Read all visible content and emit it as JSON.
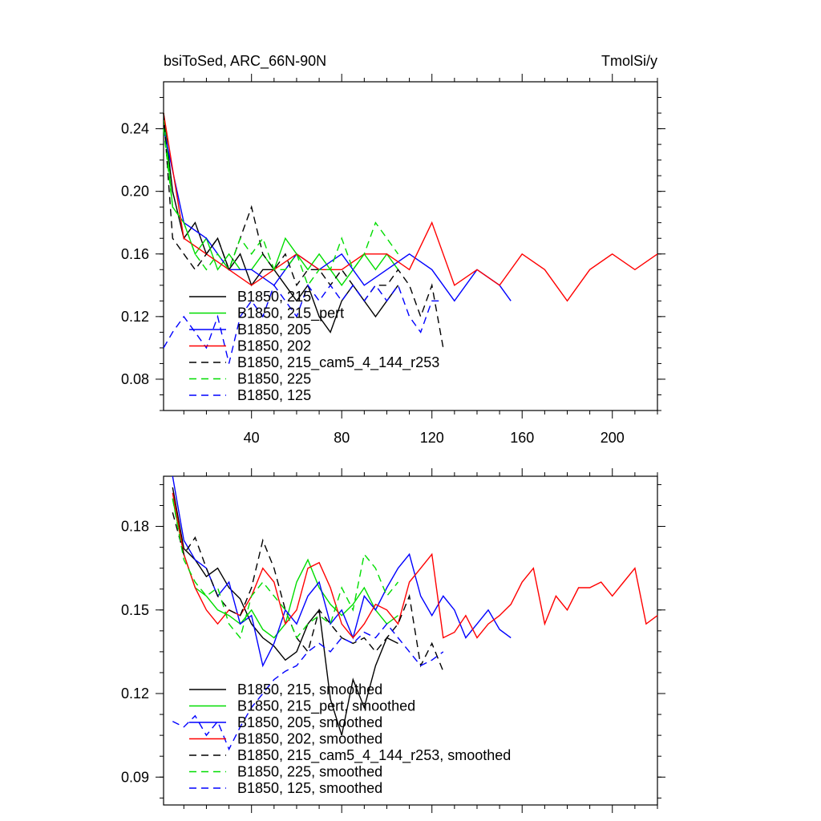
{
  "chart_data": [
    {
      "type": "line",
      "title_left": "bsiToSed, ARC_66N-90N",
      "title_right": "TmolSi/y",
      "xlim": [
        1,
        220
      ],
      "ylim": [
        0.06,
        0.27
      ],
      "xticks": [
        40,
        80,
        120,
        160,
        200
      ],
      "xtick_labels": [
        "40",
        "80",
        "120",
        "160",
        "200"
      ],
      "yticks": [
        0.08,
        0.12,
        0.16,
        0.2,
        0.24
      ],
      "ytick_labels": [
        "0.08",
        "0.12",
        "0.16",
        "0.20",
        "0.24"
      ],
      "legend": [
        {
          "label": "B1850, 215",
          "color": "#000000",
          "dash": "solid"
        },
        {
          "label": "B1850, 215_pert",
          "color": "#00dd00",
          "dash": "solid"
        },
        {
          "label": "B1850, 205",
          "color": "#0000ff",
          "dash": "solid"
        },
        {
          "label": "B1850, 202",
          "color": "#ff0000",
          "dash": "solid"
        },
        {
          "label": "B1850, 215_cam5_4_144_r253",
          "color": "#000000",
          "dash": "dashed"
        },
        {
          "label": "B1850, 225",
          "color": "#00dd00",
          "dash": "dashed"
        },
        {
          "label": "B1850, 125",
          "color": "#0000ff",
          "dash": "dashed"
        }
      ],
      "series": [
        {
          "name": "B1850, 215",
          "color": "#000000",
          "dash": "solid",
          "x": [
            1,
            5,
            10,
            15,
            20,
            25,
            30,
            35,
            40,
            45,
            50,
            55,
            60,
            65,
            70,
            75,
            80,
            85,
            90,
            95,
            100,
            105
          ],
          "values": [
            0.25,
            0.2,
            0.17,
            0.18,
            0.16,
            0.17,
            0.15,
            0.16,
            0.14,
            0.15,
            0.15,
            0.14,
            0.13,
            0.14,
            0.12,
            0.11,
            0.13,
            0.14,
            0.13,
            0.12,
            0.13,
            0.14
          ]
        },
        {
          "name": "B1850, 215_pert",
          "color": "#00dd00",
          "dash": "solid",
          "x": [
            1,
            5,
            10,
            15,
            20,
            25,
            30,
            35,
            40,
            45,
            50,
            55,
            60,
            65,
            70,
            75,
            80,
            85,
            90,
            95,
            100,
            105
          ],
          "values": [
            0.25,
            0.19,
            0.18,
            0.16,
            0.17,
            0.15,
            0.16,
            0.15,
            0.15,
            0.16,
            0.15,
            0.17,
            0.16,
            0.15,
            0.16,
            0.15,
            0.14,
            0.15,
            0.16,
            0.15,
            0.16,
            0.15
          ]
        },
        {
          "name": "B1850, 205",
          "color": "#0000ff",
          "dash": "solid",
          "x": [
            1,
            10,
            20,
            30,
            40,
            50,
            60,
            70,
            80,
            90,
            100,
            110,
            120,
            130,
            140,
            150,
            155
          ],
          "values": [
            0.24,
            0.18,
            0.17,
            0.15,
            0.15,
            0.14,
            0.16,
            0.15,
            0.16,
            0.14,
            0.15,
            0.16,
            0.15,
            0.13,
            0.15,
            0.14,
            0.13
          ]
        },
        {
          "name": "B1850, 202",
          "color": "#ff0000",
          "dash": "solid",
          "x": [
            1,
            10,
            20,
            30,
            40,
            50,
            60,
            70,
            80,
            90,
            100,
            110,
            120,
            130,
            140,
            150,
            160,
            170,
            180,
            190,
            200,
            210,
            220
          ],
          "values": [
            0.25,
            0.17,
            0.16,
            0.15,
            0.14,
            0.15,
            0.16,
            0.15,
            0.15,
            0.16,
            0.16,
            0.15,
            0.18,
            0.14,
            0.15,
            0.14,
            0.16,
            0.15,
            0.13,
            0.15,
            0.16,
            0.15,
            0.16
          ]
        },
        {
          "name": "B1850, 215_cam5_4_144_r253",
          "color": "#000000",
          "dash": "dashed",
          "x": [
            1,
            5,
            10,
            15,
            20,
            25,
            30,
            35,
            40,
            45,
            50,
            55,
            60,
            65,
            70,
            75,
            80,
            85,
            90,
            95,
            100,
            105,
            110,
            115,
            120,
            125
          ],
          "values": [
            0.25,
            0.17,
            0.16,
            0.15,
            0.16,
            0.17,
            0.15,
            0.17,
            0.19,
            0.16,
            0.15,
            0.16,
            0.14,
            0.15,
            0.15,
            0.14,
            0.15,
            0.14,
            0.13,
            0.14,
            0.14,
            0.15,
            0.14,
            0.12,
            0.14,
            0.1
          ]
        },
        {
          "name": "B1850, 225",
          "color": "#00dd00",
          "dash": "dashed",
          "x": [
            1,
            5,
            10,
            15,
            20,
            25,
            30,
            35,
            40,
            45,
            50,
            55,
            60,
            65,
            70,
            75,
            80,
            85,
            90,
            95,
            100,
            105
          ],
          "values": [
            0.24,
            0.19,
            0.18,
            0.16,
            0.15,
            0.16,
            0.15,
            0.17,
            0.16,
            0.17,
            0.15,
            0.15,
            0.16,
            0.14,
            0.15,
            0.15,
            0.17,
            0.15,
            0.16,
            0.18,
            0.17,
            0.16
          ]
        },
        {
          "name": "B1850, 125",
          "color": "#0000ff",
          "dash": "dashed",
          "x": [
            1,
            5,
            10,
            15,
            20,
            25,
            30,
            35,
            40,
            45,
            50,
            55,
            60,
            65,
            70,
            75,
            80,
            85,
            90,
            95,
            100,
            105,
            110,
            115,
            120,
            125
          ],
          "values": [
            0.1,
            0.11,
            0.12,
            0.11,
            0.1,
            0.12,
            0.09,
            0.12,
            0.13,
            0.12,
            0.14,
            0.13,
            0.12,
            0.14,
            0.13,
            0.14,
            0.13,
            0.14,
            0.13,
            0.14,
            0.13,
            0.14,
            0.12,
            0.11,
            0.13,
            0.13
          ]
        }
      ]
    },
    {
      "type": "line",
      "title_left": "",
      "title_right": "",
      "xlim": [
        1,
        220
      ],
      "ylim": [
        0.08,
        0.198
      ],
      "xticks": [
        40,
        80,
        120,
        160,
        200
      ],
      "xtick_labels": [],
      "yticks": [
        0.09,
        0.12,
        0.15,
        0.18
      ],
      "ytick_labels": [
        "0.09",
        "0.12",
        "0.15",
        "0.18"
      ],
      "legend": [
        {
          "label": "B1850, 215, smoothed",
          "color": "#000000",
          "dash": "solid"
        },
        {
          "label": "B1850, 215_pert, smoothed",
          "color": "#00dd00",
          "dash": "solid"
        },
        {
          "label": "B1850, 205, smoothed",
          "color": "#0000ff",
          "dash": "solid"
        },
        {
          "label": "B1850, 202, smoothed",
          "color": "#ff0000",
          "dash": "solid"
        },
        {
          "label": "B1850, 215_cam5_4_144_r253, smoothed",
          "color": "#000000",
          "dash": "dashed"
        },
        {
          "label": "B1850, 225, smoothed",
          "color": "#00dd00",
          "dash": "dashed"
        },
        {
          "label": "B1850, 125, smoothed",
          "color": "#0000ff",
          "dash": "dashed"
        }
      ],
      "series": [
        {
          "name": "B1850, 215, smoothed",
          "color": "#000000",
          "dash": "solid",
          "x": [
            5,
            10,
            15,
            20,
            25,
            30,
            35,
            40,
            45,
            50,
            55,
            60,
            65,
            70,
            75,
            80,
            85,
            90,
            95,
            100,
            105
          ],
          "values": [
            0.194,
            0.172,
            0.168,
            0.162,
            0.165,
            0.158,
            0.154,
            0.145,
            0.14,
            0.137,
            0.132,
            0.135,
            0.145,
            0.15,
            0.118,
            0.105,
            0.125,
            0.115,
            0.13,
            0.14,
            0.138
          ]
        },
        {
          "name": "B1850, 215_pert, smoothed",
          "color": "#00dd00",
          "dash": "solid",
          "x": [
            5,
            10,
            15,
            20,
            25,
            30,
            35,
            40,
            45,
            50,
            55,
            60,
            65,
            70,
            75,
            80,
            85,
            90,
            95,
            100,
            105
          ],
          "values": [
            0.19,
            0.17,
            0.158,
            0.155,
            0.15,
            0.148,
            0.145,
            0.15,
            0.143,
            0.14,
            0.145,
            0.16,
            0.168,
            0.158,
            0.152,
            0.148,
            0.152,
            0.158,
            0.15,
            0.145,
            0.148
          ]
        },
        {
          "name": "B1850, 205, smoothed",
          "color": "#0000ff",
          "dash": "solid",
          "x": [
            5,
            10,
            15,
            20,
            25,
            30,
            35,
            40,
            45,
            50,
            55,
            60,
            65,
            70,
            75,
            80,
            85,
            90,
            95,
            100,
            105,
            110,
            115,
            120,
            125,
            130,
            135,
            140,
            145,
            150,
            155
          ],
          "values": [
            0.198,
            0.175,
            0.168,
            0.165,
            0.155,
            0.16,
            0.145,
            0.148,
            0.13,
            0.138,
            0.15,
            0.145,
            0.155,
            0.16,
            0.145,
            0.15,
            0.14,
            0.155,
            0.15,
            0.158,
            0.165,
            0.17,
            0.155,
            0.148,
            0.155,
            0.15,
            0.14,
            0.145,
            0.15,
            0.143,
            0.14
          ]
        },
        {
          "name": "B1850, 202, smoothed",
          "color": "#ff0000",
          "dash": "solid",
          "x": [
            5,
            10,
            15,
            20,
            25,
            30,
            35,
            40,
            45,
            50,
            55,
            60,
            65,
            70,
            75,
            80,
            85,
            90,
            95,
            100,
            105,
            110,
            115,
            120,
            125,
            130,
            135,
            140,
            145,
            150,
            155,
            160,
            165,
            170,
            175,
            180,
            185,
            190,
            195,
            200,
            205,
            210,
            215,
            220
          ],
          "values": [
            0.192,
            0.17,
            0.158,
            0.15,
            0.145,
            0.15,
            0.148,
            0.155,
            0.165,
            0.16,
            0.145,
            0.15,
            0.165,
            0.167,
            0.158,
            0.145,
            0.14,
            0.145,
            0.152,
            0.15,
            0.145,
            0.16,
            0.165,
            0.17,
            0.14,
            0.142,
            0.148,
            0.14,
            0.145,
            0.148,
            0.152,
            0.16,
            0.165,
            0.145,
            0.155,
            0.15,
            0.158,
            0.158,
            0.16,
            0.155,
            0.16,
            0.165,
            0.145,
            0.148
          ]
        },
        {
          "name": "B1850, 215_cam5_4_144_r253, smoothed",
          "color": "#000000",
          "dash": "dashed",
          "x": [
            5,
            10,
            15,
            20,
            25,
            30,
            35,
            40,
            45,
            50,
            55,
            60,
            65,
            70,
            75,
            80,
            85,
            90,
            95,
            100,
            105,
            110,
            115,
            120,
            125
          ],
          "values": [
            0.185,
            0.17,
            0.176,
            0.165,
            0.155,
            0.15,
            0.148,
            0.158,
            0.175,
            0.165,
            0.15,
            0.14,
            0.135,
            0.15,
            0.145,
            0.14,
            0.138,
            0.14,
            0.135,
            0.14,
            0.145,
            0.155,
            0.13,
            0.138,
            0.128
          ]
        },
        {
          "name": "B1850, 225, smoothed",
          "color": "#00dd00",
          "dash": "dashed",
          "x": [
            5,
            10,
            15,
            20,
            25,
            30,
            35,
            40,
            45,
            50,
            55,
            60,
            65,
            70,
            75,
            80,
            85,
            90,
            95,
            100,
            105
          ],
          "values": [
            0.19,
            0.168,
            0.16,
            0.155,
            0.158,
            0.145,
            0.14,
            0.155,
            0.16,
            0.155,
            0.15,
            0.14,
            0.145,
            0.148,
            0.145,
            0.158,
            0.15,
            0.17,
            0.165,
            0.155,
            0.16
          ]
        },
        {
          "name": "B1850, 125, smoothed",
          "color": "#0000ff",
          "dash": "dashed",
          "x": [
            5,
            10,
            15,
            20,
            25,
            30,
            35,
            40,
            45,
            50,
            55,
            60,
            65,
            70,
            75,
            80,
            85,
            90,
            95,
            100,
            105,
            110,
            115,
            120,
            125
          ],
          "values": [
            0.11,
            0.108,
            0.112,
            0.105,
            0.11,
            0.1,
            0.108,
            0.115,
            0.12,
            0.125,
            0.128,
            0.13,
            0.135,
            0.138,
            0.135,
            0.14,
            0.138,
            0.142,
            0.14,
            0.145,
            0.14,
            0.135,
            0.13,
            0.132,
            0.135
          ]
        }
      ]
    }
  ]
}
